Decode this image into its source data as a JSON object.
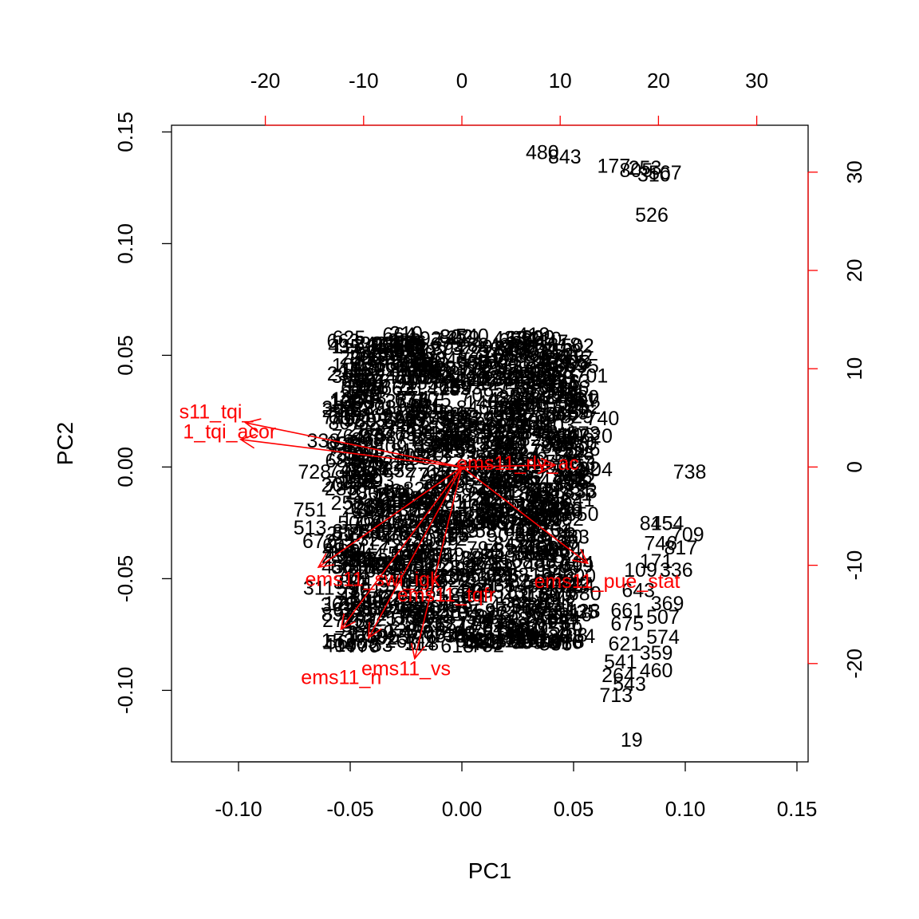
{
  "chart_data": {
    "type": "scatter",
    "subtype": "PCA biplot",
    "xlabel": "PC1",
    "ylabel": "PC2",
    "xlim": [
      -0.13,
      0.155
    ],
    "ylim": [
      -0.132,
      0.153
    ],
    "bottom_ticks": [
      -0.1,
      -0.05,
      0.0,
      0.05,
      0.1,
      0.15
    ],
    "bottom_tick_labels": [
      "-0.10",
      "-0.05",
      "0.00",
      "0.05",
      "0.10",
      "0.15"
    ],
    "left_ticks": [
      -0.1,
      -0.05,
      0.0,
      0.05,
      0.1,
      0.15
    ],
    "left_tick_labels": [
      "-0.10",
      "-0.05",
      "0.00",
      "0.05",
      "0.10",
      "0.15"
    ],
    "top_ticks": [
      -20,
      -10,
      0,
      10,
      20,
      30
    ],
    "top_tick_labels": [
      "-20",
      "-10",
      "0",
      "10",
      "20",
      "30"
    ],
    "right_ticks": [
      -20,
      -10,
      0,
      10,
      20,
      30
    ],
    "right_tick_labels": [
      "-20",
      "-10",
      "0",
      "10",
      "20",
      "30"
    ],
    "loading_scale": 0.0044,
    "dense_cluster": {
      "x_range": [
        -0.056,
        0.055
      ],
      "y_range": [
        -0.08,
        0.06
      ]
    },
    "observations": [
      {
        "label": "480",
        "x": 0.036,
        "y": 0.141
      },
      {
        "label": "843",
        "x": 0.046,
        "y": 0.139
      },
      {
        "label": "177",
        "x": 0.068,
        "y": 0.135
      },
      {
        "label": "805",
        "x": 0.078,
        "y": 0.133
      },
      {
        "label": "253",
        "x": 0.082,
        "y": 0.134
      },
      {
        "label": "310",
        "x": 0.086,
        "y": 0.131
      },
      {
        "label": "567",
        "x": 0.091,
        "y": 0.132
      },
      {
        "label": "526",
        "x": 0.085,
        "y": 0.113
      },
      {
        "label": "738",
        "x": 0.102,
        "y": -0.002
      },
      {
        "label": "845",
        "x": 0.087,
        "y": -0.025
      },
      {
        "label": "154",
        "x": 0.092,
        "y": -0.025
      },
      {
        "label": "709",
        "x": 0.101,
        "y": -0.03
      },
      {
        "label": "746",
        "x": 0.089,
        "y": -0.034
      },
      {
        "label": "817",
        "x": 0.098,
        "y": -0.036
      },
      {
        "label": "109",
        "x": 0.08,
        "y": -0.046
      },
      {
        "label": "171",
        "x": 0.087,
        "y": -0.042
      },
      {
        "label": "336",
        "x": 0.096,
        "y": -0.046
      },
      {
        "label": "643",
        "x": 0.079,
        "y": -0.055
      },
      {
        "label": "369",
        "x": 0.092,
        "y": -0.061
      },
      {
        "label": "661",
        "x": 0.074,
        "y": -0.064
      },
      {
        "label": "507",
        "x": 0.09,
        "y": -0.067
      },
      {
        "label": "675",
        "x": 0.074,
        "y": -0.07
      },
      {
        "label": "574",
        "x": 0.09,
        "y": -0.076
      },
      {
        "label": "621",
        "x": 0.073,
        "y": -0.079
      },
      {
        "label": "359",
        "x": 0.087,
        "y": -0.083
      },
      {
        "label": "541",
        "x": 0.071,
        "y": -0.087
      },
      {
        "label": "460",
        "x": 0.087,
        "y": -0.091
      },
      {
        "label": "264",
        "x": 0.07,
        "y": -0.093
      },
      {
        "label": "543",
        "x": 0.075,
        "y": -0.097
      },
      {
        "label": "713",
        "x": 0.069,
        "y": -0.102
      },
      {
        "label": "19",
        "x": 0.076,
        "y": -0.122
      },
      {
        "label": "2773",
        "x": 0.033,
        "y": -0.078
      },
      {
        "label": "310",
        "x": 0.048,
        "y": -0.007
      },
      {
        "label": "740",
        "x": 0.063,
        "y": 0.022
      },
      {
        "label": "320",
        "x": 0.06,
        "y": 0.014
      },
      {
        "label": "904",
        "x": 0.06,
        "y": -0.001
      },
      {
        "label": "701",
        "x": 0.058,
        "y": 0.041
      },
      {
        "label": "210",
        "x": -0.025,
        "y": 0.06
      },
      {
        "label": "636",
        "x": -0.035,
        "y": 0.054
      },
      {
        "label": "231",
        "x": -0.053,
        "y": 0.042
      },
      {
        "label": "338",
        "x": -0.062,
        "y": 0.012
      },
      {
        "label": "672",
        "x": -0.064,
        "y": -0.033
      },
      {
        "label": "751",
        "x": -0.068,
        "y": -0.019
      },
      {
        "label": "513",
        "x": -0.068,
        "y": -0.027
      },
      {
        "label": "728",
        "x": -0.066,
        "y": -0.002
      },
      {
        "label": "311",
        "x": -0.064,
        "y": -0.054
      }
    ],
    "loadings": [
      {
        "name": "s11_tqi_",
        "x": -22.0,
        "y": 4.5,
        "label_anchor": "end"
      },
      {
        "name": "1_tqi_acor",
        "x": -22.5,
        "y": 2.8,
        "label_anchor": "end"
      },
      {
        "name": "ems11_rly_ac",
        "x": 9.5,
        "y": 0.2,
        "label_anchor": "middle"
      },
      {
        "name": "ems11_pue_stat",
        "x": 12.8,
        "y": -9.8,
        "label_anchor": "middle"
      },
      {
        "name": "ems11_swi_igk",
        "x": -14.6,
        "y": -10.2,
        "label_anchor": "middle"
      },
      {
        "name": "ems11_tqfr",
        "x": -12.3,
        "y": -16.5,
        "label_anchor": "middle"
      },
      {
        "name": "ems11_vs",
        "x": -4.8,
        "y": -19.5,
        "label_anchor": "middle"
      },
      {
        "name": "ems11_n",
        "x": -9.5,
        "y": -17.4,
        "label_anchor": "middle"
      }
    ],
    "loading_label_positions": [
      {
        "name": "s11_tqi_",
        "lx": -0.11,
        "ly": 0.025
      },
      {
        "name": "1_tqi_acor",
        "lx": -0.104,
        "ly": 0.016
      },
      {
        "name": "ems11_rly_ac",
        "lx": 0.025,
        "ly": 0.002
      },
      {
        "name": "ems11_pue_stat",
        "lx": 0.065,
        "ly": -0.051
      },
      {
        "name": "ems11_swi_igk",
        "lx": -0.04,
        "ly": -0.05
      },
      {
        "name": "ems11_tqfr",
        "lx": -0.007,
        "ly": -0.057
      },
      {
        "name": "ems11_vs",
        "lx": -0.025,
        "ly": -0.09
      },
      {
        "name": "ems11_n",
        "lx": -0.054,
        "ly": -0.094
      }
    ]
  }
}
